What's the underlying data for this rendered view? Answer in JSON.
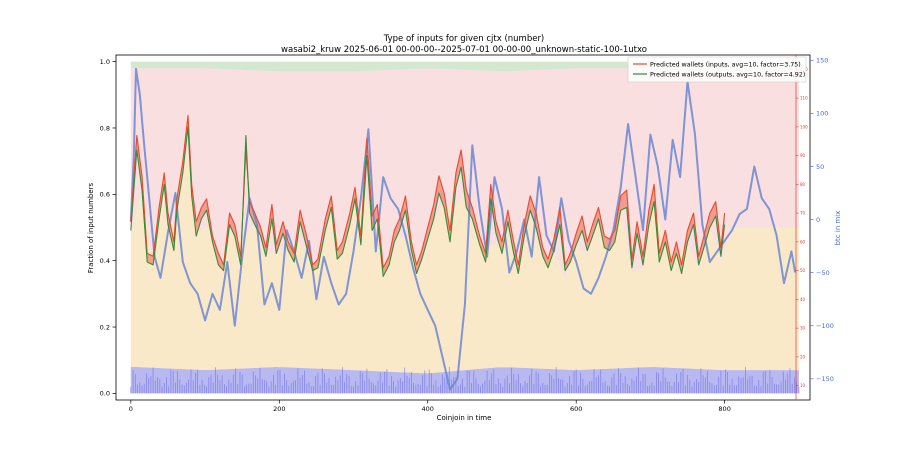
{
  "chart_data": {
    "type": "line",
    "title": "Type of inputs for given cjtx (number)",
    "subtitle": "wasabi2_kruw 2025-06-01 00-00-00--2025-07-01 00-00-00_unknown-static-100-1utxo",
    "xlabel": "Coinjoin in time",
    "ylabel": "Fraction of input numbers",
    "ylabel_right": "btc in mix",
    "xlim": [
      -20,
      915
    ],
    "ylim": [
      -0.02,
      1.02
    ],
    "ylim_right_btc": [
      -170,
      155
    ],
    "ylim_right_wallets": [
      5,
      125
    ],
    "x_ticks": [
      0,
      200,
      400,
      600,
      800
    ],
    "y_ticks": [
      0.0,
      0.2,
      0.4,
      0.6,
      0.8,
      1.0
    ],
    "y_tick_labels": [
      "0.0",
      "0.2",
      "0.4",
      "0.6",
      "0.8",
      "1.0"
    ],
    "btc_ticks": [
      -150,
      -100,
      -50,
      0,
      50,
      100,
      150
    ],
    "btc_tick_labels": [
      "−150",
      "−100",
      "−50",
      "0",
      "50",
      "100",
      "150"
    ],
    "wallet_ticks": [
      10,
      20,
      30,
      40,
      50,
      60,
      70,
      80,
      90,
      100,
      110,
      120
    ],
    "legend_position": "top-right",
    "grid": false,
    "colors": {
      "inputs": "#e8492f",
      "outputs": "#3a8a3a",
      "btc": "#6a86d4",
      "orange_area": "#f5d79b",
      "red_area": "#f2b9b9",
      "green_area": "#b7d9b0",
      "blue_area": "#7f7fe8",
      "wallet_axis": "#e23b2b",
      "btc_axis": "#4a6fd0"
    },
    "series": [
      {
        "name": "Predicted wallets (inputs, avg=10, factor=3.75)",
        "axis": "wallets",
        "x": [
          0,
          8,
          15,
          22,
          30,
          38,
          45,
          50,
          58,
          62,
          70,
          77,
          82,
          88,
          95,
          102,
          110,
          118,
          125,
          133,
          140,
          148,
          155,
          160,
          167,
          175,
          182,
          190,
          196,
          205,
          212,
          220,
          228,
          236,
          245,
          252,
          262,
          270,
          278,
          285,
          295,
          302,
          310,
          318,
          325,
          332,
          340,
          348,
          355,
          362,
          370,
          378,
          385,
          392,
          400,
          408,
          415,
          422,
          430,
          438,
          445,
          452,
          460,
          470,
          478,
          485,
          492,
          500,
          508,
          515,
          522,
          530,
          538,
          546,
          555,
          562,
          570,
          578,
          585,
          592,
          600,
          608,
          615,
          622,
          630,
          638,
          645,
          652,
          660,
          668,
          675,
          682,
          690,
          698,
          705,
          712,
          720,
          728,
          735,
          742,
          750,
          758,
          765,
          772,
          780,
          788,
          795,
          800
        ],
        "y": [
          67,
          97,
          83,
          56,
          55,
          72,
          84,
          70,
          60,
          75,
          88,
          104,
          80,
          67,
          72,
          75,
          62,
          56,
          52,
          70,
          66,
          55,
          92,
          74,
          70,
          65,
          58,
          73,
          59,
          67,
          60,
          56,
          71,
          63,
          52,
          54,
          68,
          76,
          57,
          60,
          70,
          79,
          62,
          96,
          69,
          73,
          51,
          55,
          64,
          68,
          76,
          60,
          52,
          57,
          65,
          73,
          83,
          77,
          64,
          84,
          92,
          78,
          72,
          62,
          56,
          80,
          67,
          60,
          71,
          61,
          52,
          66,
          76,
          70,
          58,
          54,
          61,
          72,
          52,
          56,
          63,
          69,
          60,
          66,
          72,
          62,
          61,
          64,
          76,
          78,
          54,
          67,
          55,
          71,
          80,
          56,
          64,
          53,
          60,
          52,
          64,
          70,
          55,
          62,
          70,
          74,
          58,
          70
        ]
      },
      {
        "name": "Predicted wallets (outputs, avg=10, factor=4.92)",
        "axis": "wallets",
        "x": [
          0,
          8,
          15,
          22,
          30,
          38,
          45,
          50,
          58,
          62,
          70,
          77,
          82,
          88,
          95,
          102,
          110,
          118,
          125,
          133,
          140,
          148,
          155,
          160,
          167,
          175,
          182,
          190,
          196,
          205,
          212,
          220,
          228,
          236,
          245,
          252,
          262,
          270,
          278,
          285,
          295,
          302,
          310,
          318,
          325,
          332,
          340,
          348,
          355,
          362,
          370,
          378,
          385,
          392,
          400,
          408,
          415,
          422,
          430,
          438,
          445,
          452,
          460,
          470,
          478,
          485,
          492,
          500,
          508,
          515,
          522,
          530,
          538,
          546,
          555,
          562,
          570,
          578,
          585,
          592,
          600,
          608,
          615,
          622,
          630,
          638,
          645,
          652,
          660,
          668,
          675,
          682,
          690,
          698,
          705,
          712,
          720,
          728,
          735,
          742,
          750,
          758,
          765,
          772,
          780,
          788,
          795,
          800
        ],
        "y": [
          64,
          92,
          78,
          53,
          52,
          68,
          80,
          66,
          57,
          71,
          84,
          100,
          76,
          62,
          68,
          71,
          60,
          52,
          50,
          66,
          62,
          52,
          97,
          70,
          66,
          62,
          55,
          68,
          56,
          63,
          57,
          53,
          67,
          59,
          50,
          51,
          64,
          72,
          54,
          56,
          66,
          75,
          59,
          90,
          64,
          68,
          48,
          52,
          60,
          64,
          71,
          57,
          49,
          54,
          61,
          68,
          77,
          72,
          60,
          79,
          86,
          72,
          68,
          59,
          53,
          75,
          63,
          56,
          67,
          57,
          49,
          62,
          71,
          65,
          55,
          51,
          57,
          66,
          50,
          53,
          59,
          64,
          57,
          62,
          68,
          58,
          57,
          60,
          71,
          72,
          51,
          63,
          52,
          66,
          74,
          53,
          60,
          50,
          56,
          49,
          60,
          66,
          52,
          58,
          65,
          69,
          55,
          66
        ]
      },
      {
        "name": "btc in mix",
        "axis": "btc",
        "x": [
          0,
          4,
          7,
          12,
          18,
          25,
          32,
          40,
          50,
          60,
          70,
          80,
          90,
          100,
          110,
          120,
          130,
          140,
          150,
          160,
          170,
          180,
          190,
          200,
          210,
          220,
          230,
          240,
          250,
          260,
          270,
          280,
          290,
          300,
          310,
          320,
          330,
          340,
          350,
          360,
          370,
          380,
          390,
          400,
          410,
          420,
          430,
          440,
          450,
          460,
          470,
          480,
          490,
          500,
          510,
          520,
          530,
          540,
          550,
          560,
          570,
          580,
          590,
          600,
          610,
          620,
          630,
          640,
          650,
          660,
          670,
          680,
          690,
          700,
          710,
          720,
          730,
          740,
          750,
          760,
          770,
          780,
          790,
          800,
          810,
          820,
          830,
          840,
          850,
          860,
          870,
          880,
          890,
          895
        ],
        "y": [
          -2,
          60,
          142,
          118,
          70,
          18,
          -35,
          -55,
          -12,
          25,
          -40,
          -60,
          -70,
          -95,
          -70,
          -85,
          -40,
          -100,
          -35,
          20,
          -5,
          -80,
          -60,
          -85,
          -10,
          -30,
          -55,
          -20,
          -75,
          -35,
          -60,
          -80,
          -70,
          -30,
          20,
          85,
          -30,
          40,
          20,
          10,
          -15,
          -45,
          -70,
          -85,
          -100,
          -130,
          -160,
          -150,
          -80,
          70,
          10,
          -35,
          40,
          10,
          -50,
          -30,
          0,
          -35,
          40,
          -15,
          -30,
          20,
          -20,
          -40,
          -65,
          -70,
          -55,
          -35,
          -10,
          30,
          90,
          40,
          -10,
          80,
          50,
          0,
          75,
          40,
          130,
          80,
          -5,
          -40,
          -30,
          -20,
          -10,
          5,
          10,
          50,
          20,
          10,
          -15,
          -60,
          -30,
          -50
        ]
      },
      {
        "name": "fraction_band_lower",
        "axis": "fraction",
        "x": [
          0,
          100,
          200,
          300,
          400,
          500,
          600,
          700,
          800,
          900
        ],
        "y": [
          0.08,
          0.07,
          0.08,
          0.07,
          0.06,
          0.08,
          0.07,
          0.08,
          0.07,
          0.07
        ]
      },
      {
        "name": "fraction_band_upper",
        "axis": "fraction",
        "x": [
          0,
          100,
          200,
          300,
          400,
          500,
          600,
          700,
          800,
          900
        ],
        "y": [
          0.98,
          0.98,
          0.97,
          0.97,
          0.98,
          0.97,
          0.98,
          0.98,
          0.97,
          0.98
        ]
      }
    ]
  }
}
